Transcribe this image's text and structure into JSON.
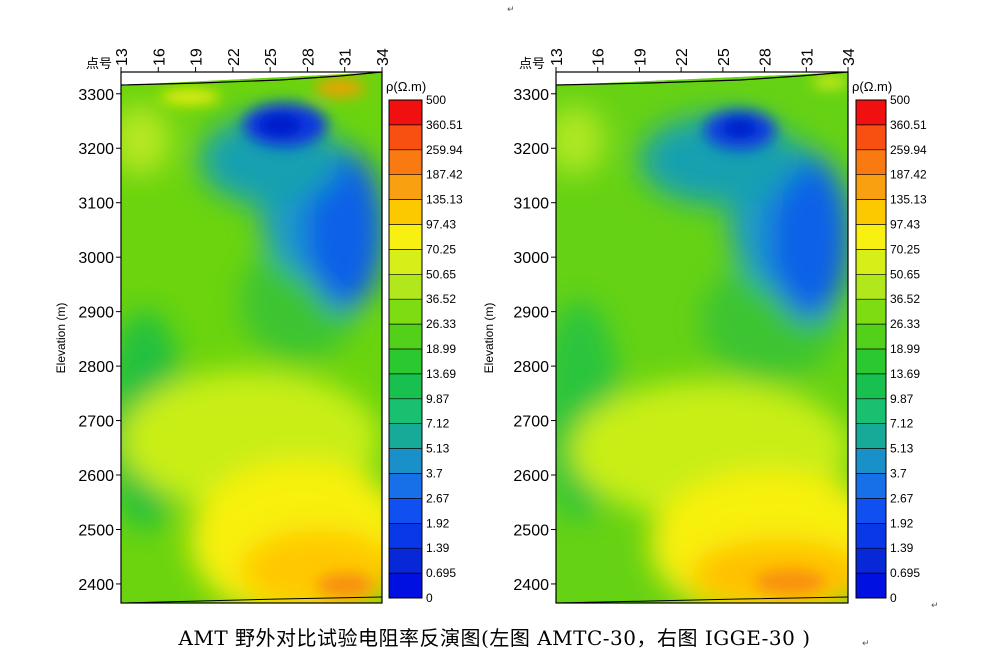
{
  "caption": "AMT 野外对比试验电阻率反演图(左图 AMTC-30，右图 IGGE-30 )",
  "para_marks": [
    "↵",
    "↵",
    "↵"
  ],
  "chart_data": [
    {
      "type": "heatmap",
      "name": "AMTC-30",
      "title": "",
      "station_label": "点号",
      "x_ticks": [
        "13",
        "16",
        "19",
        "22",
        "25",
        "28",
        "31",
        "34"
      ],
      "xlim": [
        13,
        34
      ],
      "ylabel": "Elevation (m)",
      "y_ticks": [
        3300,
        3200,
        3100,
        3000,
        2900,
        2800,
        2700,
        2600,
        2500,
        2400
      ],
      "ylim": [
        2365,
        3340
      ],
      "colorbar_title": "ρ(Ω.m)",
      "colorbar_levels": [
        "500",
        "360.51",
        "259.94",
        "187.42",
        "135.13",
        "97.43",
        "70.25",
        "50.65",
        "36.52",
        "26.33",
        "18.99",
        "13.69",
        "9.87",
        "7.12",
        "5.13",
        "3.7",
        "2.67",
        "1.92",
        "1.39",
        "0.695",
        "0"
      ],
      "anomalies": [
        {
          "kind": "low",
          "station": 27.5,
          "elevation": 3240,
          "level": "1.39"
        },
        {
          "kind": "high",
          "station": 30.5,
          "elevation": 3315,
          "level": "187.42"
        },
        {
          "kind": "high",
          "station": 31,
          "elevation": 2390,
          "level": "259.94"
        }
      ]
    },
    {
      "type": "heatmap",
      "name": "IGGE-30",
      "title": "",
      "station_label": "点号",
      "x_ticks": [
        "13",
        "16",
        "19",
        "22",
        "25",
        "28",
        "31",
        "34"
      ],
      "xlim": [
        13,
        34
      ],
      "ylabel": "Elevation (m)",
      "y_ticks": [
        3300,
        3200,
        3100,
        3000,
        2900,
        2800,
        2700,
        2600,
        2500,
        2400
      ],
      "ylim": [
        2365,
        3340
      ],
      "colorbar_title": "ρ(Ω.m)",
      "colorbar_levels": [
        "500",
        "360.51",
        "259.94",
        "187.42",
        "135.13",
        "97.43",
        "70.25",
        "50.65",
        "36.52",
        "26.33",
        "18.99",
        "13.69",
        "9.87",
        "7.12",
        "5.13",
        "3.7",
        "2.67",
        "1.92",
        "1.39",
        "0.695",
        "0"
      ],
      "anomalies": [
        {
          "kind": "low",
          "station": 27.5,
          "elevation": 3235,
          "level": "1.92"
        },
        {
          "kind": "high",
          "station": 29,
          "elevation": 2410,
          "level": "187.42"
        }
      ]
    }
  ]
}
